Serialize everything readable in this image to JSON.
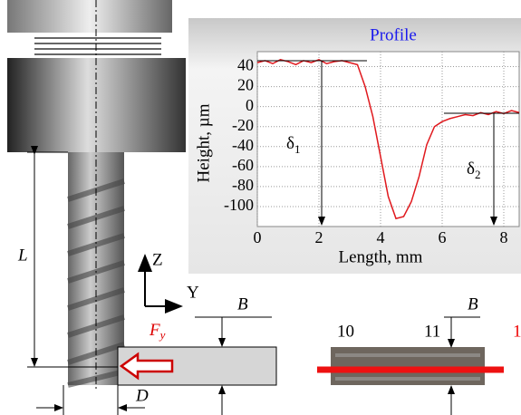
{
  "chart_data": {
    "type": "line",
    "title": "Profile",
    "x_label": "Length, mm",
    "y_label": "Height, µm",
    "xlim": [
      0,
      8.5
    ],
    "ylim": [
      -120,
      55
    ],
    "xticks": [
      0,
      2,
      4,
      6,
      8
    ],
    "yticks": [
      -100,
      -80,
      -60,
      -40,
      -20,
      0,
      20,
      40
    ],
    "grid": true,
    "x": [
      0,
      0.25,
      0.5,
      0.75,
      1,
      1.25,
      1.5,
      1.75,
      2,
      2.25,
      2.5,
      2.75,
      3,
      3.25,
      3.5,
      3.75,
      4,
      4.25,
      4.5,
      4.75,
      5,
      5.25,
      5.5,
      5.75,
      6,
      6.25,
      6.5,
      6.75,
      7,
      7.25,
      7.5,
      7.75,
      8,
      8.25,
      8.5
    ],
    "series": [
      {
        "name": "Profile",
        "color": "#e0191e",
        "values": [
          44,
          46,
          43,
          47,
          45,
          42,
          46,
          44,
          47,
          43,
          45,
          46,
          44,
          42,
          20,
          -10,
          -50,
          -90,
          -112,
          -110,
          -95,
          -70,
          -38,
          -20,
          -15,
          -12,
          -10,
          -8,
          -9,
          -6,
          -8,
          -5,
          -7,
          -4,
          -6
        ]
      }
    ],
    "annotations": [
      {
        "main": "δ",
        "sub": "1"
      },
      {
        "main": "δ",
        "sub": "2"
      }
    ]
  },
  "diagram": {
    "length_label": "L",
    "axis_z": "Z",
    "axis_y": "Y",
    "force": {
      "main": "F",
      "sub": "y"
    },
    "width_label_left": "B",
    "diameter_label": "D",
    "photo_labels": [
      "10",
      "11"
    ],
    "width_label_right": "B",
    "line_label": "1"
  }
}
